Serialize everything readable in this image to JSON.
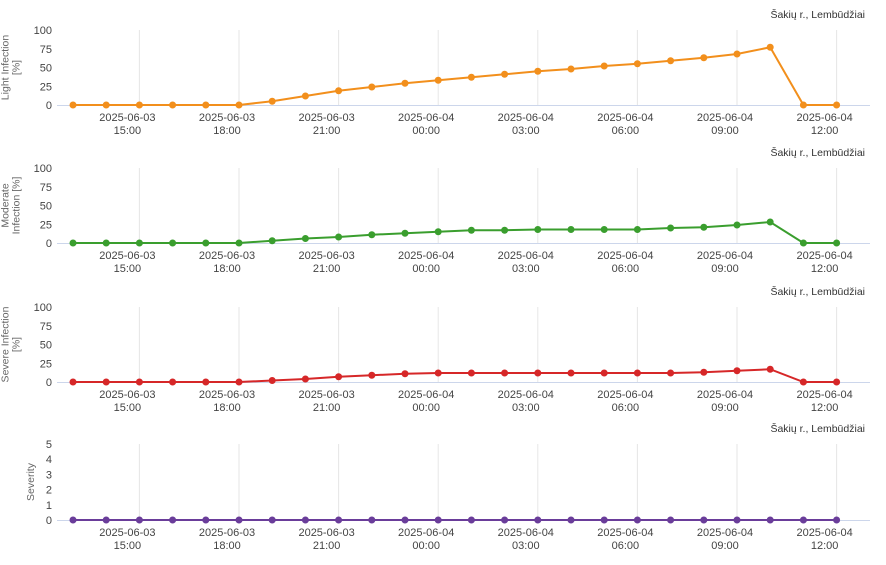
{
  "chart_data": [
    {
      "type": "line",
      "subtitle": "Šakių r., Lembūdžiai",
      "ylabel": [
        "Light Infection",
        "[%]"
      ],
      "x": [
        "2025-06-03 13:00",
        "2025-06-03 14:00",
        "2025-06-03 15:00",
        "2025-06-03 16:00",
        "2025-06-03 17:00",
        "2025-06-03 18:00",
        "2025-06-03 19:00",
        "2025-06-03 20:00",
        "2025-06-03 21:00",
        "2025-06-03 22:00",
        "2025-06-03 23:00",
        "2025-06-04 00:00",
        "2025-06-04 01:00",
        "2025-06-04 02:00",
        "2025-06-04 03:00",
        "2025-06-04 04:00",
        "2025-06-04 05:00",
        "2025-06-04 06:00",
        "2025-06-04 07:00",
        "2025-06-04 08:00",
        "2025-06-04 09:00",
        "2025-06-04 10:00",
        "2025-06-04 11:00",
        "2025-06-04 12:00"
      ],
      "xticks": [
        {
          "value": "2025-06-03 15:00",
          "label": [
            "2025-06-03",
            "15:00"
          ]
        },
        {
          "value": "2025-06-03 18:00",
          "label": [
            "2025-06-03",
            "18:00"
          ]
        },
        {
          "value": "2025-06-03 21:00",
          "label": [
            "2025-06-03",
            "21:00"
          ]
        },
        {
          "value": "2025-06-04 00:00",
          "label": [
            "2025-06-04",
            "00:00"
          ]
        },
        {
          "value": "2025-06-04 03:00",
          "label": [
            "2025-06-04",
            "03:00"
          ]
        },
        {
          "value": "2025-06-04 06:00",
          "label": [
            "2025-06-04",
            "06:00"
          ]
        },
        {
          "value": "2025-06-04 09:00",
          "label": [
            "2025-06-04",
            "09:00"
          ]
        },
        {
          "value": "2025-06-04 12:00",
          "label": [
            "2025-06-04",
            "12:00"
          ]
        }
      ],
      "ylim": [
        0,
        100
      ],
      "yticks": [
        0,
        25,
        50,
        75,
        100
      ],
      "series": [
        {
          "color": "#f28f1c",
          "values": [
            0,
            0,
            0,
            0,
            0,
            0,
            5,
            12,
            19,
            24,
            29,
            33,
            37,
            41,
            45,
            48,
            52,
            55,
            59,
            63,
            68,
            77,
            0,
            0
          ]
        }
      ]
    },
    {
      "type": "line",
      "subtitle": "Šakių r., Lembūdžiai",
      "ylabel": [
        "Moderate",
        "Infection [%]"
      ],
      "x": [
        "2025-06-03 13:00",
        "2025-06-03 14:00",
        "2025-06-03 15:00",
        "2025-06-03 16:00",
        "2025-06-03 17:00",
        "2025-06-03 18:00",
        "2025-06-03 19:00",
        "2025-06-03 20:00",
        "2025-06-03 21:00",
        "2025-06-03 22:00",
        "2025-06-03 23:00",
        "2025-06-04 00:00",
        "2025-06-04 01:00",
        "2025-06-04 02:00",
        "2025-06-04 03:00",
        "2025-06-04 04:00",
        "2025-06-04 05:00",
        "2025-06-04 06:00",
        "2025-06-04 07:00",
        "2025-06-04 08:00",
        "2025-06-04 09:00",
        "2025-06-04 10:00",
        "2025-06-04 11:00",
        "2025-06-04 12:00"
      ],
      "xticks": [
        {
          "value": "2025-06-03 15:00",
          "label": [
            "2025-06-03",
            "15:00"
          ]
        },
        {
          "value": "2025-06-03 18:00",
          "label": [
            "2025-06-03",
            "18:00"
          ]
        },
        {
          "value": "2025-06-03 21:00",
          "label": [
            "2025-06-03",
            "21:00"
          ]
        },
        {
          "value": "2025-06-04 00:00",
          "label": [
            "2025-06-04",
            "00:00"
          ]
        },
        {
          "value": "2025-06-04 03:00",
          "label": [
            "2025-06-04",
            "03:00"
          ]
        },
        {
          "value": "2025-06-04 06:00",
          "label": [
            "2025-06-04",
            "06:00"
          ]
        },
        {
          "value": "2025-06-04 09:00",
          "label": [
            "2025-06-04",
            "09:00"
          ]
        },
        {
          "value": "2025-06-04 12:00",
          "label": [
            "2025-06-04",
            "12:00"
          ]
        }
      ],
      "ylim": [
        0,
        100
      ],
      "yticks": [
        0,
        25,
        50,
        75,
        100
      ],
      "series": [
        {
          "color": "#3a9e2e",
          "values": [
            0,
            0,
            0,
            0,
            0,
            0,
            3,
            6,
            8,
            11,
            13,
            15,
            17,
            17,
            18,
            18,
            18,
            18,
            20,
            21,
            24,
            28,
            0,
            0
          ]
        }
      ]
    },
    {
      "type": "line",
      "subtitle": "Šakių r., Lembūdžiai",
      "ylabel": [
        "Severe Infection",
        "[%]"
      ],
      "x": [
        "2025-06-03 13:00",
        "2025-06-03 14:00",
        "2025-06-03 15:00",
        "2025-06-03 16:00",
        "2025-06-03 17:00",
        "2025-06-03 18:00",
        "2025-06-03 19:00",
        "2025-06-03 20:00",
        "2025-06-03 21:00",
        "2025-06-03 22:00",
        "2025-06-03 23:00",
        "2025-06-04 00:00",
        "2025-06-04 01:00",
        "2025-06-04 02:00",
        "2025-06-04 03:00",
        "2025-06-04 04:00",
        "2025-06-04 05:00",
        "2025-06-04 06:00",
        "2025-06-04 07:00",
        "2025-06-04 08:00",
        "2025-06-04 09:00",
        "2025-06-04 10:00",
        "2025-06-04 11:00",
        "2025-06-04 12:00"
      ],
      "xticks": [
        {
          "value": "2025-06-03 15:00",
          "label": [
            "2025-06-03",
            "15:00"
          ]
        },
        {
          "value": "2025-06-03 18:00",
          "label": [
            "2025-06-03",
            "18:00"
          ]
        },
        {
          "value": "2025-06-03 21:00",
          "label": [
            "2025-06-03",
            "21:00"
          ]
        },
        {
          "value": "2025-06-04 00:00",
          "label": [
            "2025-06-04",
            "00:00"
          ]
        },
        {
          "value": "2025-06-04 03:00",
          "label": [
            "2025-06-04",
            "03:00"
          ]
        },
        {
          "value": "2025-06-04 06:00",
          "label": [
            "2025-06-04",
            "06:00"
          ]
        },
        {
          "value": "2025-06-04 09:00",
          "label": [
            "2025-06-04",
            "09:00"
          ]
        },
        {
          "value": "2025-06-04 12:00",
          "label": [
            "2025-06-04",
            "12:00"
          ]
        }
      ],
      "ylim": [
        0,
        100
      ],
      "yticks": [
        0,
        25,
        50,
        75,
        100
      ],
      "series": [
        {
          "color": "#d62728",
          "values": [
            0,
            0,
            0,
            0,
            0,
            0,
            2,
            4,
            7,
            9,
            11,
            12,
            12,
            12,
            12,
            12,
            12,
            12,
            12,
            13,
            15,
            17,
            0,
            0
          ]
        }
      ]
    },
    {
      "type": "line",
      "subtitle": "Šakių r., Lembūdžiai",
      "ylabel": [
        "Severity"
      ],
      "x": [
        "2025-06-03 13:00",
        "2025-06-03 14:00",
        "2025-06-03 15:00",
        "2025-06-03 16:00",
        "2025-06-03 17:00",
        "2025-06-03 18:00",
        "2025-06-03 19:00",
        "2025-06-03 20:00",
        "2025-06-03 21:00",
        "2025-06-03 22:00",
        "2025-06-03 23:00",
        "2025-06-04 00:00",
        "2025-06-04 01:00",
        "2025-06-04 02:00",
        "2025-06-04 03:00",
        "2025-06-04 04:00",
        "2025-06-04 05:00",
        "2025-06-04 06:00",
        "2025-06-04 07:00",
        "2025-06-04 08:00",
        "2025-06-04 09:00",
        "2025-06-04 10:00",
        "2025-06-04 11:00",
        "2025-06-04 12:00"
      ],
      "xticks": [
        {
          "value": "2025-06-03 15:00",
          "label": [
            "2025-06-03",
            "15:00"
          ]
        },
        {
          "value": "2025-06-03 18:00",
          "label": [
            "2025-06-03",
            "18:00"
          ]
        },
        {
          "value": "2025-06-03 21:00",
          "label": [
            "2025-06-03",
            "21:00"
          ]
        },
        {
          "value": "2025-06-04 00:00",
          "label": [
            "2025-06-04",
            "00:00"
          ]
        },
        {
          "value": "2025-06-04 03:00",
          "label": [
            "2025-06-04",
            "03:00"
          ]
        },
        {
          "value": "2025-06-04 06:00",
          "label": [
            "2025-06-04",
            "06:00"
          ]
        },
        {
          "value": "2025-06-04 09:00",
          "label": [
            "2025-06-04",
            "09:00"
          ]
        },
        {
          "value": "2025-06-04 12:00",
          "label": [
            "2025-06-04",
            "12:00"
          ]
        }
      ],
      "ylim": [
        0,
        5
      ],
      "yticks": [
        0,
        1,
        2,
        3,
        4,
        5
      ],
      "series": [
        {
          "color": "#6a3d9a",
          "values": [
            0,
            0,
            0,
            0,
            0,
            0,
            0,
            0,
            0,
            0,
            0,
            0,
            0,
            0,
            0,
            0,
            0,
            0,
            0,
            0,
            0,
            0,
            0,
            0
          ]
        }
      ]
    }
  ]
}
